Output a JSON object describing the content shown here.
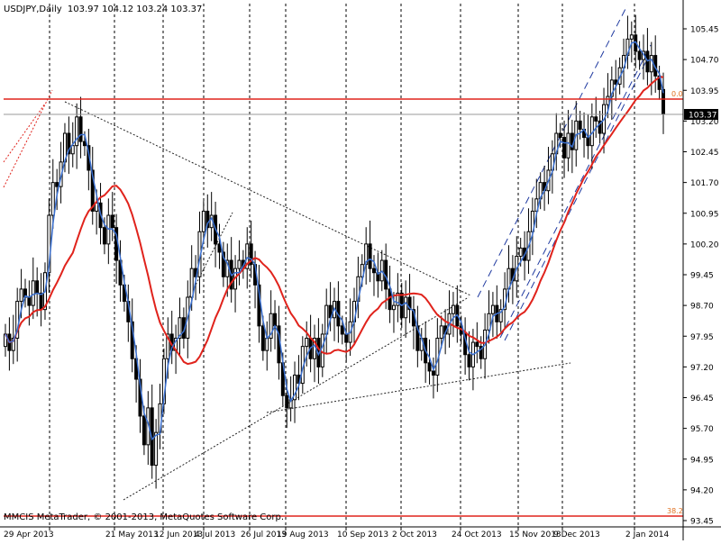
{
  "header": {
    "symbol": "USDJPY,Daily",
    "ohlc": "103.97 104.12 103.24 103.37"
  },
  "footer": {
    "copyright": "MMCIS MetaTrader, © 2001-2013, MetaQuotes Software Corp."
  },
  "price_label": "103.37",
  "fib_labels": {
    "top": "0.0",
    "bottom": "38.2"
  },
  "colors": {
    "bull_candle": "#ffffff",
    "bear_candle": "#000000",
    "ma_fast": "#3a6fcf",
    "ma_slow": "#e0231c",
    "level_line": "#e0231c",
    "fib_label": "#e07020",
    "grid": "#000000"
  },
  "chart_data": {
    "type": "candlestick",
    "title": "USDJPY,Daily",
    "ylim": [
      93.45,
      105.75
    ],
    "y_ticks": [
      "105.45",
      "104.70",
      "103.95",
      "103.20",
      "102.45",
      "101.70",
      "100.95",
      "100.20",
      "99.45",
      "98.70",
      "97.95",
      "97.20",
      "96.45",
      "95.70",
      "94.95",
      "94.20",
      "93.45"
    ],
    "x_labels": [
      "29 Apr 2013",
      "21 May 2013",
      "12 Jun 2013",
      "4 Jul 2013",
      "26 Jul 2013",
      "19 Aug 2013",
      "10 Sep 2013",
      "2 Oct 2013",
      "24 Oct 2013",
      "15 Nov 2013",
      "9 Dec 2013",
      "2 Jan 2014"
    ],
    "current_price": 103.37,
    "horizontal_levels": [
      {
        "value": 103.72,
        "label": "0.0"
      },
      {
        "value": 93.57,
        "label": "38.2"
      }
    ],
    "candles_close_path": [
      98.0,
      97.6,
      97.9,
      98.8,
      99.1,
      98.9,
      98.7,
      99.3,
      99.0,
      98.6,
      99.5,
      100.9,
      101.7,
      101.6,
      102.2,
      102.9,
      102.4,
      102.6,
      103.3,
      102.7,
      102.6,
      102.0,
      101.0,
      101.2,
      100.6,
      100.2,
      100.9,
      100.6,
      99.8,
      99.2,
      98.8,
      98.3,
      97.4,
      96.9,
      96.0,
      95.3,
      96.2,
      94.8,
      95.6,
      96.3,
      97.4,
      98.0,
      97.6,
      97.9,
      98.4,
      97.9,
      98.9,
      99.6,
      99.4,
      100.5,
      101.0,
      100.6,
      100.9,
      100.2,
      100.0,
      99.4,
      99.8,
      99.1,
      99.6,
      99.8,
      99.6,
      100.2,
      99.7,
      99.2,
      98.2,
      97.6,
      97.9,
      98.5,
      98.2,
      97.3,
      96.5,
      96.2,
      96.4,
      97.0,
      96.8,
      97.7,
      97.9,
      97.4,
      97.9,
      97.2,
      98.0,
      98.7,
      98.4,
      98.8,
      98.2,
      98.0,
      97.8,
      98.3,
      98.8,
      99.4,
      99.7,
      100.2,
      99.6,
      99.5,
      99.3,
      99.8,
      99.1,
      98.6,
      98.7,
      99.0,
      98.4,
      98.9,
      98.6,
      98.2,
      97.6,
      97.9,
      97.3,
      97.1,
      97.0,
      97.9,
      98.2,
      98.0,
      98.5,
      98.7,
      98.2,
      98.0,
      97.5,
      97.2,
      97.8,
      97.7,
      97.4,
      98.1,
      98.5,
      98.7,
      98.3,
      98.6,
      99.1,
      99.6,
      99.3,
      99.9,
      100.1,
      99.8,
      100.5,
      101.0,
      101.3,
      101.7,
      101.5,
      102.0,
      102.4,
      102.9,
      102.8,
      102.3,
      102.9,
      102.5,
      103.2,
      103.0,
      102.8,
      102.6,
      103.3,
      103.2,
      102.9,
      103.6,
      103.8,
      104.2,
      104.1,
      104.5,
      104.8,
      105.2,
      105.3,
      104.9,
      104.7,
      104.9,
      104.4,
      104.8,
      104.3,
      103.97,
      103.37
    ]
  }
}
